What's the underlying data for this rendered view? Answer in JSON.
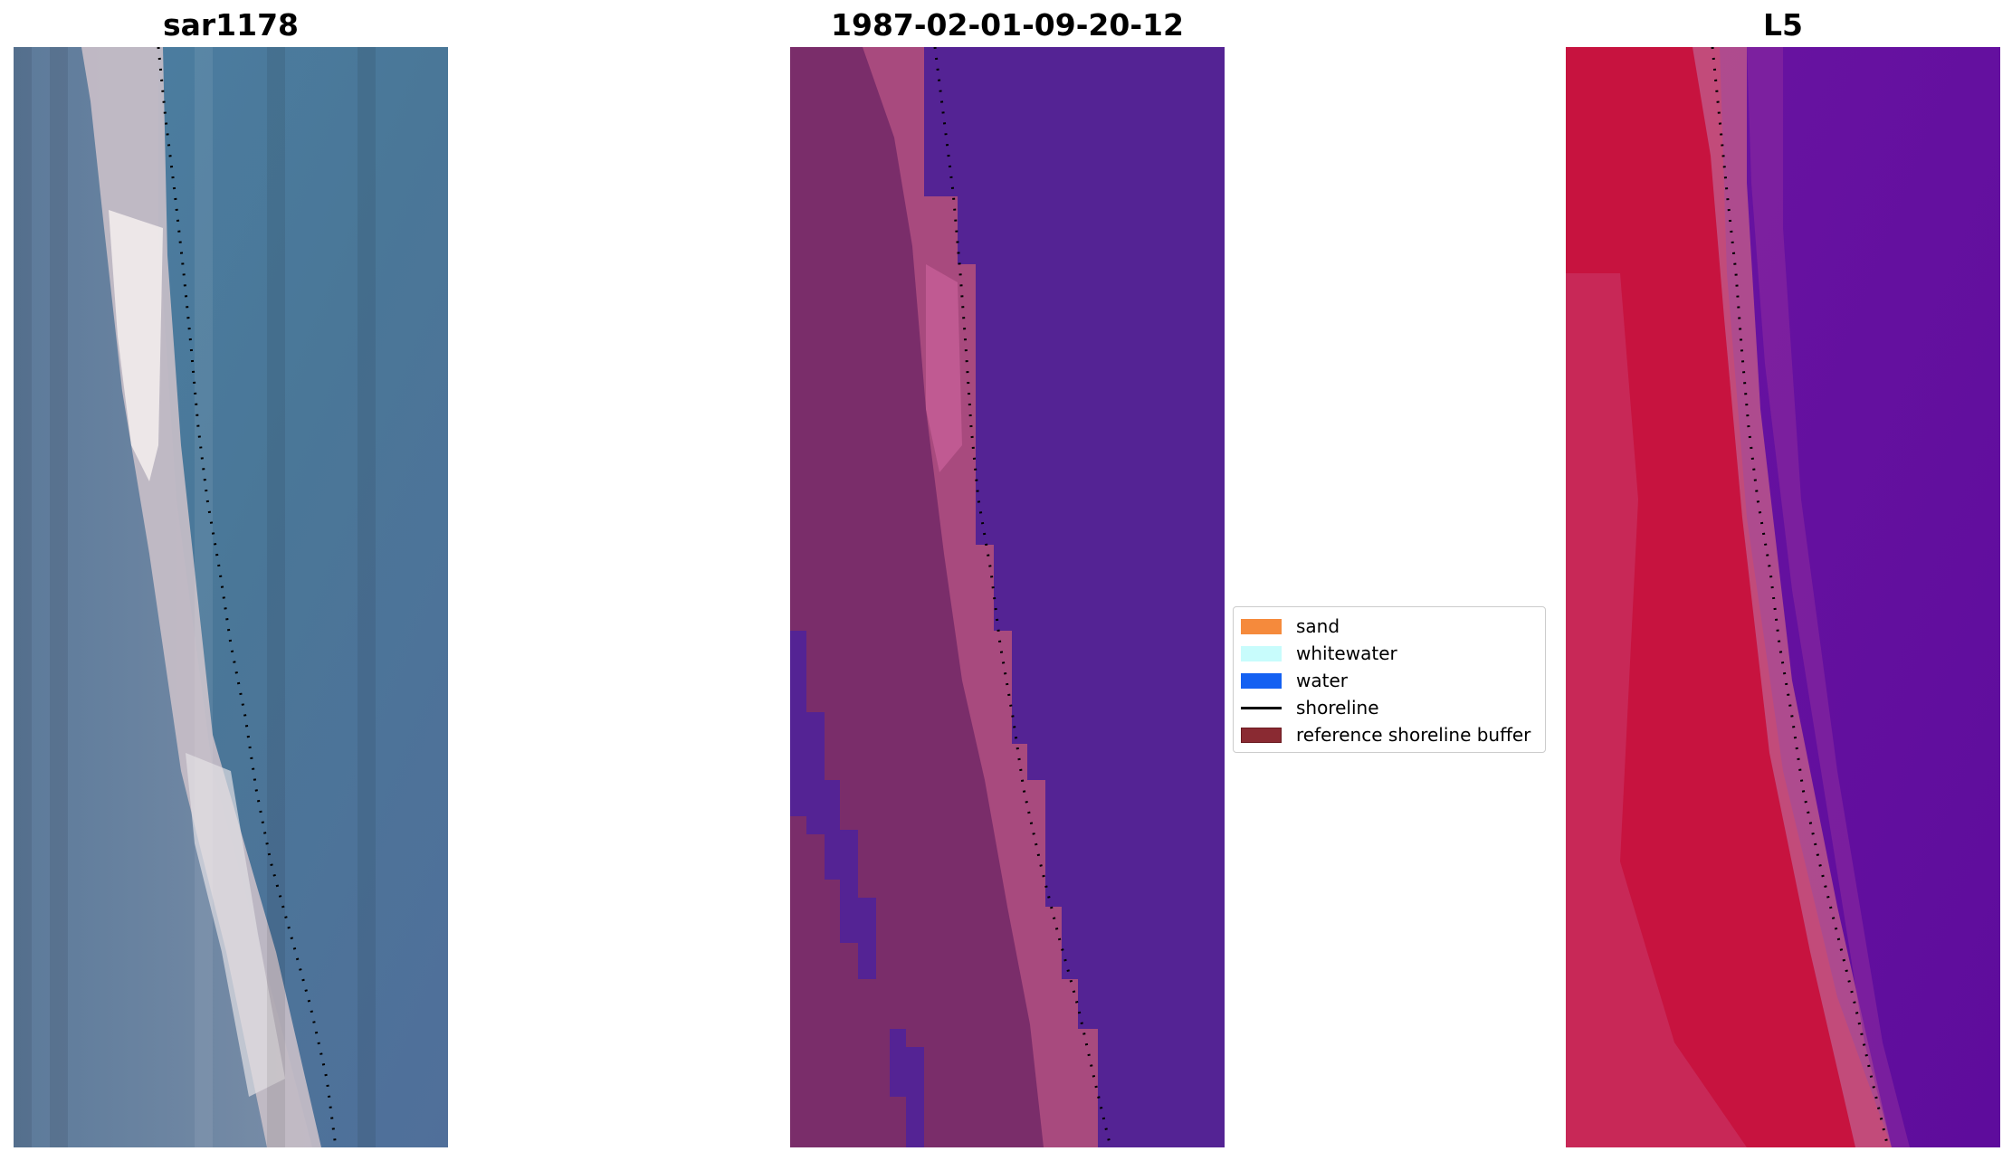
{
  "panels": [
    {
      "id": "rgb",
      "title": "sar1178"
    },
    {
      "id": "classified",
      "title": "1987-02-01-09-20-12"
    },
    {
      "id": "index",
      "title": "L5"
    }
  ],
  "legend": {
    "items": [
      {
        "label": "sand",
        "color": "#f58a3c",
        "kind": "patch"
      },
      {
        "label": "whitewater",
        "color": "#c8fcfc",
        "kind": "patch"
      },
      {
        "label": "water",
        "color": "#1461f2",
        "kind": "patch"
      },
      {
        "label": "shoreline",
        "color": "#000000",
        "kind": "line"
      },
      {
        "label": "reference shoreline buffer",
        "color": "#8a2a32",
        "kind": "patch"
      }
    ]
  },
  "colors": {
    "rgb_sand": "#cdbfc4",
    "rgb_water": "#4a7899",
    "class_land": "#7a2d6a",
    "class_sand": "#a84a7e",
    "class_water": "#542394",
    "index_land": "#c7133f",
    "index_water": "#640da0"
  }
}
